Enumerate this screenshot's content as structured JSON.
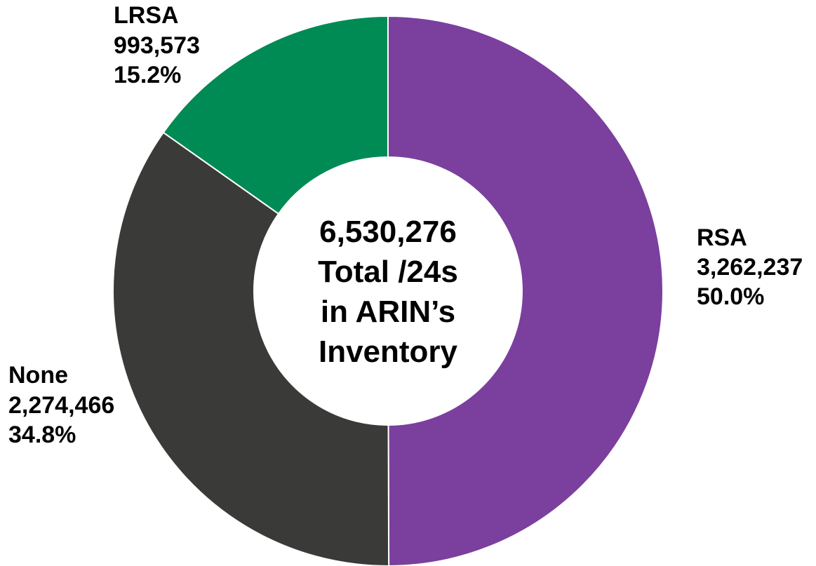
{
  "chart_data": {
    "type": "pie",
    "style": "donut",
    "center_text": [
      "6,530,276",
      "Total /24s",
      "in ARIN’s",
      "Inventory"
    ],
    "total": 6530276,
    "slices": [
      {
        "label": "RSA",
        "value": 3262237,
        "value_text": "3,262,237",
        "percent": 50.0,
        "percent_text": "50.0%",
        "color": "#7b3f9e"
      },
      {
        "label": "None",
        "value": 2274466,
        "value_text": "2,274,466",
        "percent": 34.8,
        "percent_text": "34.8%",
        "color": "#3a3a38"
      },
      {
        "label": "LRSA",
        "value": 993573,
        "value_text": "993,573",
        "percent": 15.2,
        "percent_text": "15.2%",
        "color": "#008b55"
      }
    ],
    "legend": "none"
  }
}
